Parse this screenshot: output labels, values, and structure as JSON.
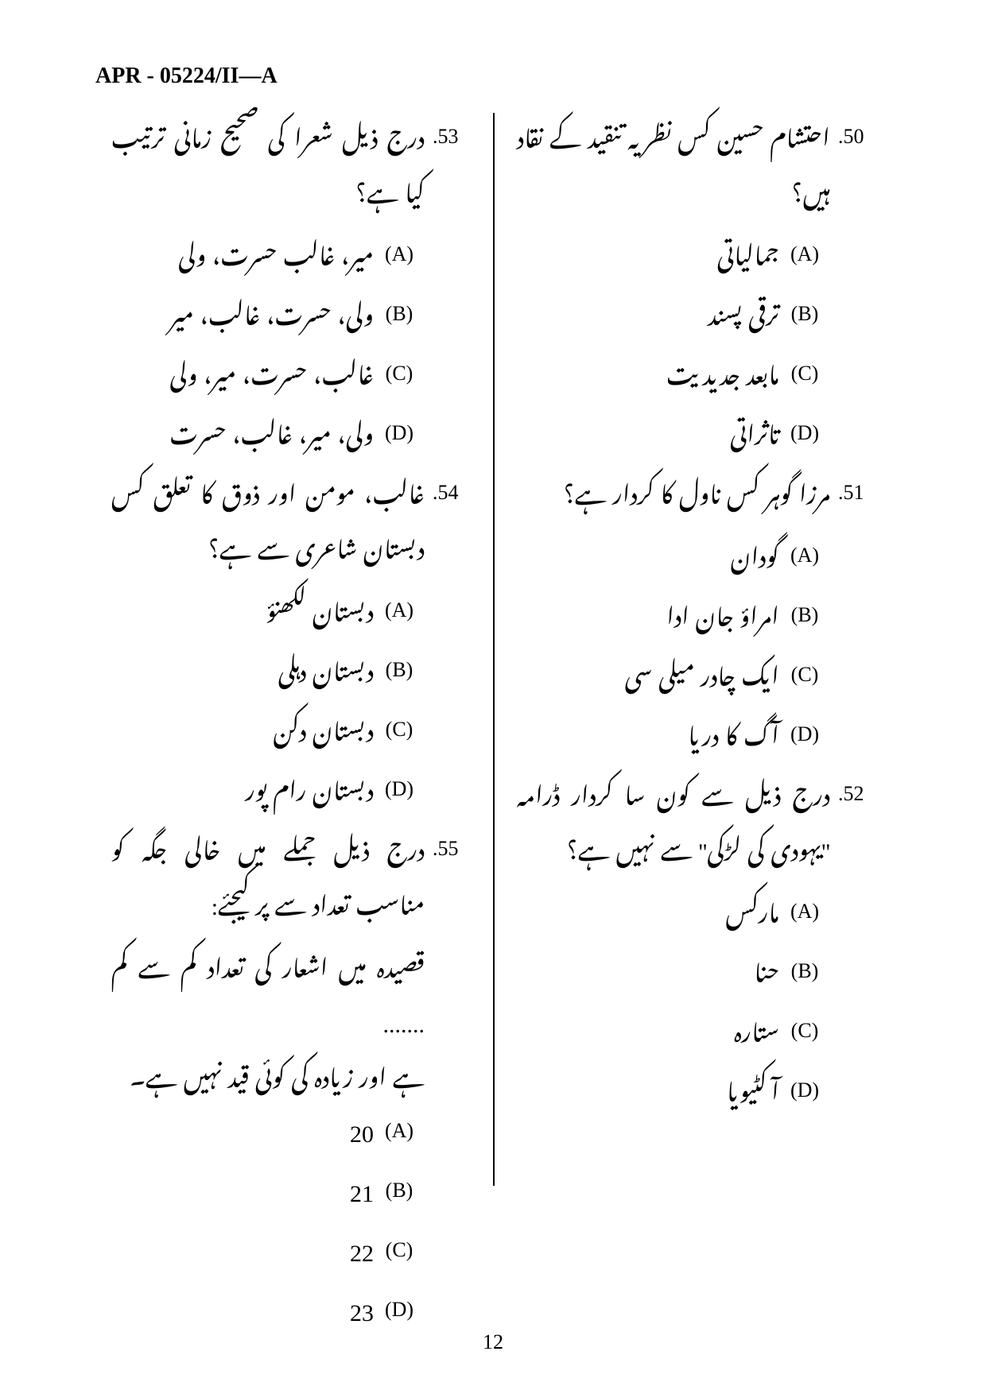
{
  "header": "APR - 05224/II—A",
  "page_number": "12",
  "left_column": {
    "q53": {
      "num": ".53",
      "text": "درج ذیل شعرا کی صحیح زمانی ترتیب کیا ہے؟",
      "opts": {
        "A": "میر، غالب حسرت، ولی",
        "B": "ولی، حسرت، غالب، میر",
        "C": "غالب، حسرت، میر، ولی",
        "D": "ولی، میر، غالب، حسرت"
      }
    },
    "q54": {
      "num": ".54",
      "text": "غالب، مومن اور ذوق کا تعلق کس دبستان شاعری سے ہے؟",
      "opts": {
        "A": "دبستان لکھنؤ",
        "B": "دبستان دہلی",
        "C": "دبستان دکن",
        "D": "دبستان رام پور"
      }
    },
    "q55": {
      "num": ".55",
      "text": "درج ذیل جملے میں خالی جگہ کو مناسب تعداد سے پر کیجئے:",
      "line2": "قصیدہ میں اشعار کی تعداد کم سے کم .......",
      "line3": "ہے اور زیادہ کی کوئی قید نہیں ہے۔",
      "opts": {
        "A": "20",
        "B": "21",
        "C": "22",
        "D": "23"
      }
    }
  },
  "right_column": {
    "q50": {
      "num": ".50",
      "text": "احتشام حسین کس نظریہ تنقید کے نقاد ہیں؟",
      "opts": {
        "A": "جمالیاتی",
        "B": "ترقی پسند",
        "C": "مابعد جدیدیت",
        "D": "تاثراتی"
      }
    },
    "q51": {
      "num": ".51",
      "text": "مرزا گوہر کس ناول کا کردار ہے؟",
      "opts": {
        "A": "گودان",
        "B": "امراؤ جان ادا",
        "C": "ایک چادر میلی سی",
        "D": "آگ کا دریا"
      }
    },
    "q52": {
      "num": ".52",
      "text": "درج ذیل سے کون سا کردار ڈرامہ ''یہودی کی لڑکی'' سے نہیں ہے؟",
      "opts": {
        "A": "مارکس",
        "B": "حنا",
        "C": "ستارہ",
        "D": "آکٹیویا"
      }
    }
  }
}
